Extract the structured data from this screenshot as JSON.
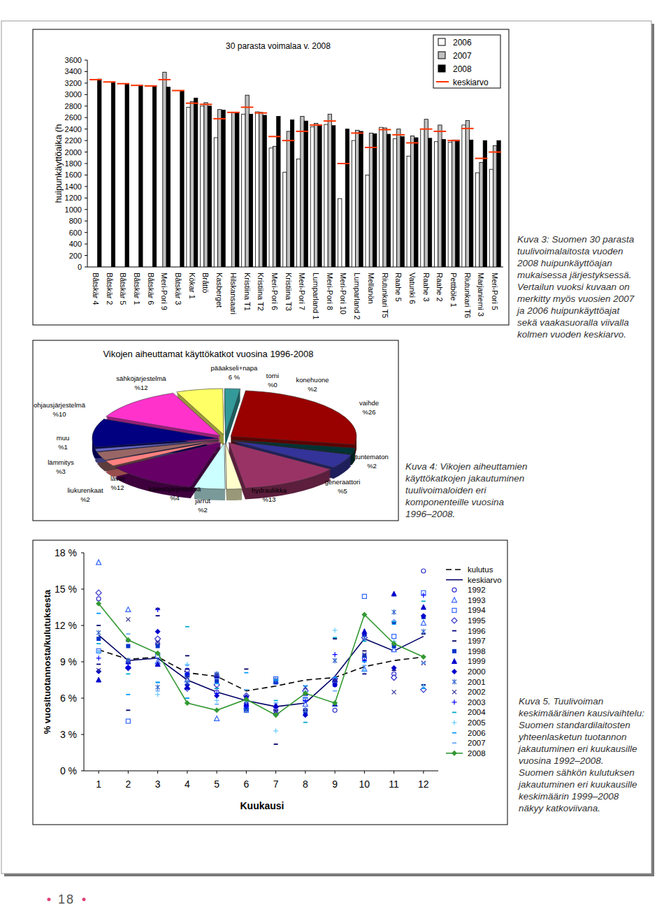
{
  "chart_data": [
    {
      "type": "bar",
      "title": "30 parasta voimalaa v. 2008",
      "y_label": "huipunkäyttöaika (h",
      "categories": [
        "Båtskär 4",
        "Båtskär 2",
        "Båtskär 5",
        "Båtskär 1",
        "Båtskär 6",
        "Meri-Pori 9",
        "Båtskär 3",
        "Kökar 1",
        "Bråttö",
        "Kasberget",
        "Hilskansaari",
        "Kristiina T1",
        "Kristiina T2",
        "Meri-Pori 6",
        "Kristiina T3",
        "Meri-Pori 7",
        "Lumparland 1",
        "Meri-Pori 8",
        "Meri-Pori 10",
        "Lumparland 2",
        "Mellanön",
        "Riutunkari T5",
        "Raahe 5",
        "Vatunki 6",
        "Raahe 3",
        "Raahe 2",
        "Pettböle 1",
        "Riutunkari T6",
        "Marjaniemi 3",
        "Meri-Pori 5"
      ],
      "series": [
        {
          "name": "2006",
          "color": "#ffffff",
          "values": [
            null,
            null,
            null,
            null,
            null,
            null,
            null,
            2780,
            2800,
            2250,
            null,
            2660,
            2700,
            2070,
            1650,
            1880,
            2440,
            2480,
            1190,
            2200,
            1600,
            2430,
            2230,
            1930,
            2400,
            2180,
            2170,
            2470,
            1640,
            1700
          ]
        },
        {
          "name": "2007",
          "color": "#c0c0c0",
          "values": [
            null,
            null,
            null,
            null,
            null,
            3390,
            null,
            2880,
            2860,
            2740,
            2690,
            2990,
            2690,
            2100,
            2360,
            2620,
            2500,
            2660,
            null,
            2380,
            2330,
            2420,
            2400,
            2280,
            2570,
            2470,
            2210,
            2550,
            1820,
            2110
          ]
        },
        {
          "name": "2008",
          "color": "#000000",
          "values": [
            3270,
            3220,
            3190,
            3160,
            3150,
            3130,
            3060,
            2940,
            2800,
            2730,
            2690,
            2660,
            2640,
            2620,
            2560,
            2540,
            2470,
            2460,
            2400,
            2360,
            2320,
            2310,
            2270,
            2250,
            2240,
            2220,
            2210,
            2210,
            2200,
            2200
          ]
        },
        {
          "name": "keskiarvo",
          "type": "scatter",
          "marker": "dash",
          "color": "#ff3300",
          "values": [
            3260,
            3220,
            3190,
            3160,
            3150,
            3260,
            3070,
            2850,
            2830,
            2580,
            2690,
            2780,
            2680,
            2270,
            2200,
            2360,
            2470,
            2540,
            1800,
            2330,
            2080,
            2390,
            2300,
            2160,
            2400,
            2360,
            2200,
            2410,
            1890,
            2000
          ]
        }
      ],
      "ylim": [
        0,
        3600
      ],
      "yticks": [
        0,
        200,
        400,
        600,
        800,
        1000,
        1200,
        1400,
        1600,
        1800,
        2000,
        2200,
        2400,
        2600,
        2800,
        3000,
        3200,
        3400,
        3600
      ],
      "grid": false,
      "legend": "upper right"
    },
    {
      "type": "pie",
      "title": "Vikojen aiheuttamat käyttökatkot vuosina 1996-2008",
      "categories": [
        "pääakseli+napa",
        "torni",
        "konehuone",
        "vaihde",
        "tuntematon",
        "generaattori",
        "hydrauliikka",
        "jarrut",
        "kääntöjärjestelmä",
        "lavat",
        "liukurenkaat",
        "lämmitys",
        "muu",
        "ohjausjärjestelmä",
        "sähköjärjestelmä"
      ],
      "values": [
        6,
        0,
        2,
        26,
        2,
        5,
        13,
        2,
        4,
        12,
        2,
        3,
        1,
        10,
        12
      ],
      "value_labels": [
        "6 %",
        "%0",
        "%2",
        "%26",
        "%2",
        "%5",
        "%13",
        "%2",
        "%4",
        "%12",
        "%2",
        "%3",
        "%1",
        "%10",
        "%12"
      ],
      "colors": [
        "#ffff66",
        "#008080",
        "#339999",
        "#990000",
        "#003333",
        "#333399",
        "#993366",
        "#ffffcc",
        "#ccffff",
        "#660066",
        "#ff8080",
        "#996666",
        "#6666cc",
        "#000080",
        "#ff33cc"
      ],
      "data_labels": true
    },
    {
      "type": "line",
      "y_label": "% vuosituotannosta/kulutuksesta",
      "x_label": "Kuukausi",
      "x": [
        1,
        2,
        3,
        4,
        5,
        6,
        7,
        8,
        9,
        10,
        11,
        12
      ],
      "series": [
        {
          "name": "kulutus",
          "type": "line",
          "line_style": "dashed",
          "color": "#000000",
          "values": [
            10.0,
            9.2,
            9.4,
            8.1,
            7.8,
            6.6,
            7.0,
            7.5,
            7.7,
            8.6,
            9.1,
            9.4
          ]
        },
        {
          "name": "keskiarvo",
          "type": "line",
          "line_style": "solid",
          "color": "#000066",
          "values": [
            11.2,
            9.1,
            9.3,
            7.5,
            6.5,
            5.8,
            5.3,
            5.6,
            7.8,
            10.9,
            9.9,
            11.1
          ]
        },
        {
          "name": "1992",
          "type": "scatter",
          "marker": "circle",
          "color": "#3333cc",
          "values": [
            14.2,
            9.0,
            10.5,
            8.3,
            6.5,
            5.5,
            5.0,
            5.0,
            5.0,
            9.3,
            8.0,
            16.5
          ]
        },
        {
          "name": "1993",
          "type": "scatter",
          "marker": "triangle",
          "color": "#3366ff",
          "values": [
            17.2,
            13.3,
            9.0,
            7.5,
            4.3,
            5.3,
            7.4,
            5.5,
            5.5,
            8.4,
            10.0,
            12.2
          ]
        },
        {
          "name": "1994",
          "type": "scatter",
          "marker": "square",
          "color": "#3366ff",
          "values": [
            9.9,
            4.1,
            9.5,
            7.9,
            7.8,
            5.0,
            7.6,
            5.9,
            7.4,
            14.4,
            11.1,
            14.7
          ]
        },
        {
          "name": "1995",
          "type": "scatter",
          "marker": "diamond",
          "color": "#3333cc",
          "values": [
            14.7,
            8.5,
            10.9,
            6.8,
            7.1,
            6.2,
            4.7,
            6.6,
            7.6,
            11.0,
            7.7,
            6.7
          ]
        },
        {
          "name": "1996",
          "type": "scatter",
          "marker": "dash",
          "color": "#000080",
          "values": [
            8.8,
            10.7,
            12.8,
            8.4,
            7.7,
            5.9,
            5.0,
            5.0,
            5.4,
            8.0,
            8.3,
            7.1
          ]
        },
        {
          "name": "1997",
          "type": "scatter",
          "marker": "dash",
          "color": "#000066",
          "values": [
            12.0,
            5.0,
            13.4,
            9.5,
            6.8,
            8.4,
            2.2,
            6.0,
            10.9,
            9.9,
            12.2,
            11.3
          ]
        },
        {
          "name": "1998",
          "type": "scatter",
          "marker": "square-filled",
          "color": "#0033cc",
          "values": [
            10.9,
            10.3,
            10.3,
            7.9,
            7.4,
            5.1,
            7.3,
            4.7,
            7.1,
            9.5,
            10.3,
            12.7
          ]
        },
        {
          "name": "1999",
          "type": "scatter",
          "marker": "triangle-filled",
          "color": "#0000cc",
          "values": [
            7.5,
            9.0,
            8.8,
            6.9,
            7.9,
            5.5,
            5.4,
            6.4,
            7.5,
            11.5,
            14.6,
            13.5
          ]
        },
        {
          "name": "2000",
          "type": "scatter",
          "marker": "diamond-filled",
          "color": "#0000cc",
          "values": [
            8.2,
            8.5,
            11.5,
            7.1,
            6.2,
            6.1,
            5.3,
            4.6,
            7.1,
            11.2,
            8.5,
            12.8
          ]
        },
        {
          "name": "2001",
          "type": "scatter",
          "marker": "asterisk",
          "color": "#3366cc",
          "values": [
            11.4,
            9.1,
            6.9,
            7.3,
            8.0,
            5.0,
            7.5,
            5.0,
            9.1,
            11.0,
            13.1,
            11.5
          ]
        },
        {
          "name": "2002",
          "type": "scatter",
          "marker": "x",
          "color": "#333399",
          "values": [
            8.3,
            12.5,
            10.6,
            7.7,
            7.9,
            5.8,
            4.9,
            6.9,
            7.5,
            9.6,
            6.5,
            8.9
          ]
        },
        {
          "name": "2003",
          "type": "scatter",
          "marker": "plus",
          "color": "#0000ff",
          "values": [
            9.3,
            8.6,
            13.3,
            8.0,
            6.4,
            5.3,
            4.6,
            5.8,
            9.6,
            9.1,
            12.3,
            14.5
          ]
        },
        {
          "name": "2004",
          "type": "scatter",
          "marker": "dash",
          "color": "#00aacc",
          "values": [
            10.5,
            8.0,
            7.3,
            11.9,
            6.8,
            6.7,
            5.8,
            4.0,
            11.0,
            10.7,
            12.3,
            14.0
          ]
        },
        {
          "name": "2005",
          "type": "scatter",
          "marker": "plus",
          "color": "#66ccff",
          "values": [
            9.8,
            10.8,
            6.3,
            8.8,
            5.8,
            5.7,
            3.3,
            6.5,
            11.6,
            8.3,
            10.7,
            7.0
          ]
        },
        {
          "name": "2006",
          "type": "scatter",
          "marker": "dash",
          "color": "#0099ff",
          "values": [
            13.0,
            6.3,
            7.3,
            6.0,
            7.2,
            8.1,
            7.5,
            7.0,
            7.7,
            9.0,
            12.1,
            6.8
          ]
        },
        {
          "name": "2007",
          "type": "scatter",
          "marker": "dash",
          "color": "#66aaff",
          "values": [
            9.9,
            11.3,
            6.6,
            8.7,
            5.5,
            6.7,
            5.6,
            6.0,
            6.6,
            8.7,
            12.4,
            8.9
          ]
        },
        {
          "name": "2008",
          "type": "line",
          "line_style": "solid",
          "marker": "diamond-filled",
          "color": "#339933",
          "values": [
            13.8,
            10.8,
            9.7,
            5.6,
            5.0,
            5.9,
            4.6,
            6.4,
            5.6,
            12.9,
            10.5,
            9.4
          ]
        }
      ],
      "xlim": [
        0.5,
        12.5
      ],
      "xticks": [
        1,
        2,
        3,
        4,
        5,
        6,
        7,
        8,
        9,
        10,
        11,
        12
      ],
      "ylim": [
        0,
        18
      ],
      "yticks": [
        {
          "value": 0,
          "label": "0 %"
        },
        {
          "value": 3,
          "label": "3 %"
        },
        {
          "value": 6,
          "label": "6 %"
        },
        {
          "value": 9,
          "label": "9 %"
        },
        {
          "value": 12,
          "label": "12 %"
        },
        {
          "value": 15,
          "label": "15 %"
        },
        {
          "value": 18,
          "label": "18 %"
        }
      ],
      "grid": false,
      "legend": "right"
    }
  ],
  "captions": [
    [
      "Kuva 3: Suomen 30 parasta",
      "tuulivoimalaitosta vuoden",
      "2008 huipunkäyttöajan",
      "mukaisessa järjestyksessä.",
      "Vertailun vuoksi kuvaan on",
      "merkitty myös vuosien 2007",
      "ja 2006 huipunkäyttöajat",
      "sekä vaakasuoralla viivalla",
      "kolmen vuoden keskiarvo."
    ],
    [
      "Kuva 4: Vikojen aiheuttamien",
      "käyttökatkojen jakautuminen",
      "tuulivoimaloiden eri",
      "komponenteille vuosina",
      "1996–2008."
    ],
    [
      "Kuva 5. Tuulivoiman",
      "keskimääräinen kausivaihtelu:",
      "Suomen standardilaitosten",
      "yhteenlasketun tuotannon",
      "jakautuminen eri kuukausille",
      "vuosina 1992–2008.",
      "Suomen sähkön kulutuksen",
      "jakautuminen eri kuukausille",
      "keskimäärin 1999–2008",
      "näkyy katkoviivana."
    ]
  ],
  "page_number": "18"
}
